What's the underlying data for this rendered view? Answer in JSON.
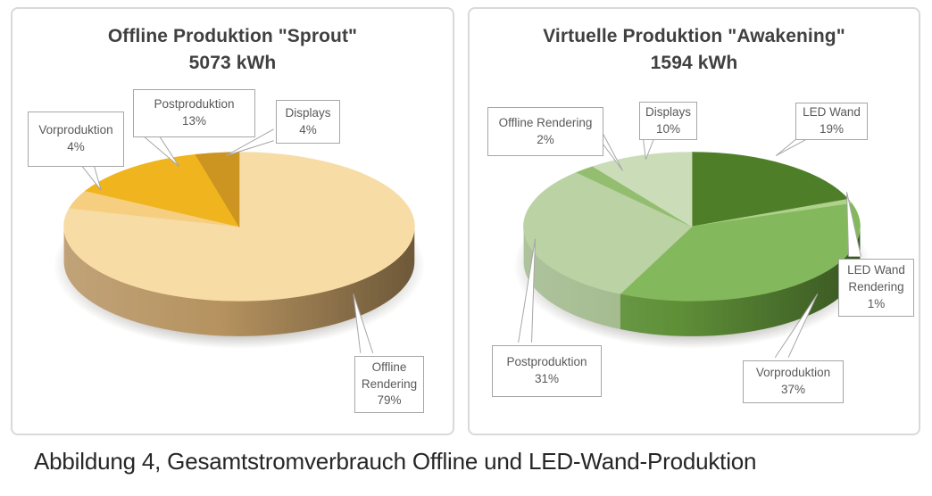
{
  "figure": {
    "caption": "Abbildung 4, Gesamtstromverbrauch Offline und LED-Wand-Produktion"
  },
  "chart_data": [
    {
      "type": "pie",
      "style": "3d-pie",
      "title": "Offline Produktion \"Sprout\"",
      "total_label": "5073 kWh",
      "total_kwh": 5073,
      "unit": "kWh",
      "start_angle_deg": 0,
      "direction": "clockwise",
      "legend": "none",
      "slices": [
        {
          "label": "Offline Rendering",
          "value": 79,
          "pct_label": "79%",
          "color": "#F7DCA6",
          "side_color": "#B5925F"
        },
        {
          "label": "Vorproduktion",
          "value": 4,
          "pct_label": "4%",
          "color": "#F6CE7F"
        },
        {
          "label": "Postproduktion",
          "value": 13,
          "pct_label": "13%",
          "color": "#EFB41E"
        },
        {
          "label": "Displays",
          "value": 4,
          "pct_label": "4%",
          "color": "#CC9421"
        }
      ]
    },
    {
      "type": "pie",
      "style": "3d-pie",
      "title": "Virtuelle Produktion \"Awakening\"",
      "total_label": "1594 kWh",
      "total_kwh": 1594,
      "unit": "kWh",
      "start_angle_deg": 0,
      "direction": "clockwise",
      "legend": "none",
      "slices": [
        {
          "label": "LED Wand",
          "value": 19,
          "pct_label": "19%",
          "color": "#4E7F28"
        },
        {
          "label": "LED Wand Rendering",
          "value": 1,
          "pct_label": "1%",
          "color": "#AFD18B"
        },
        {
          "label": "Vorproduktion",
          "value": 37,
          "pct_label": "37%",
          "color": "#84B85C",
          "side_color": "#5F9038"
        },
        {
          "label": "Postproduktion",
          "value": 31,
          "pct_label": "31%",
          "color": "#BAD2A4",
          "side_color": "#9FB789"
        },
        {
          "label": "Offline Rendering",
          "value": 2,
          "pct_label": "2%",
          "color": "#93BE70"
        },
        {
          "label": "Displays",
          "value": 10,
          "pct_label": "10%",
          "color": "#CBDDB8"
        }
      ]
    }
  ]
}
